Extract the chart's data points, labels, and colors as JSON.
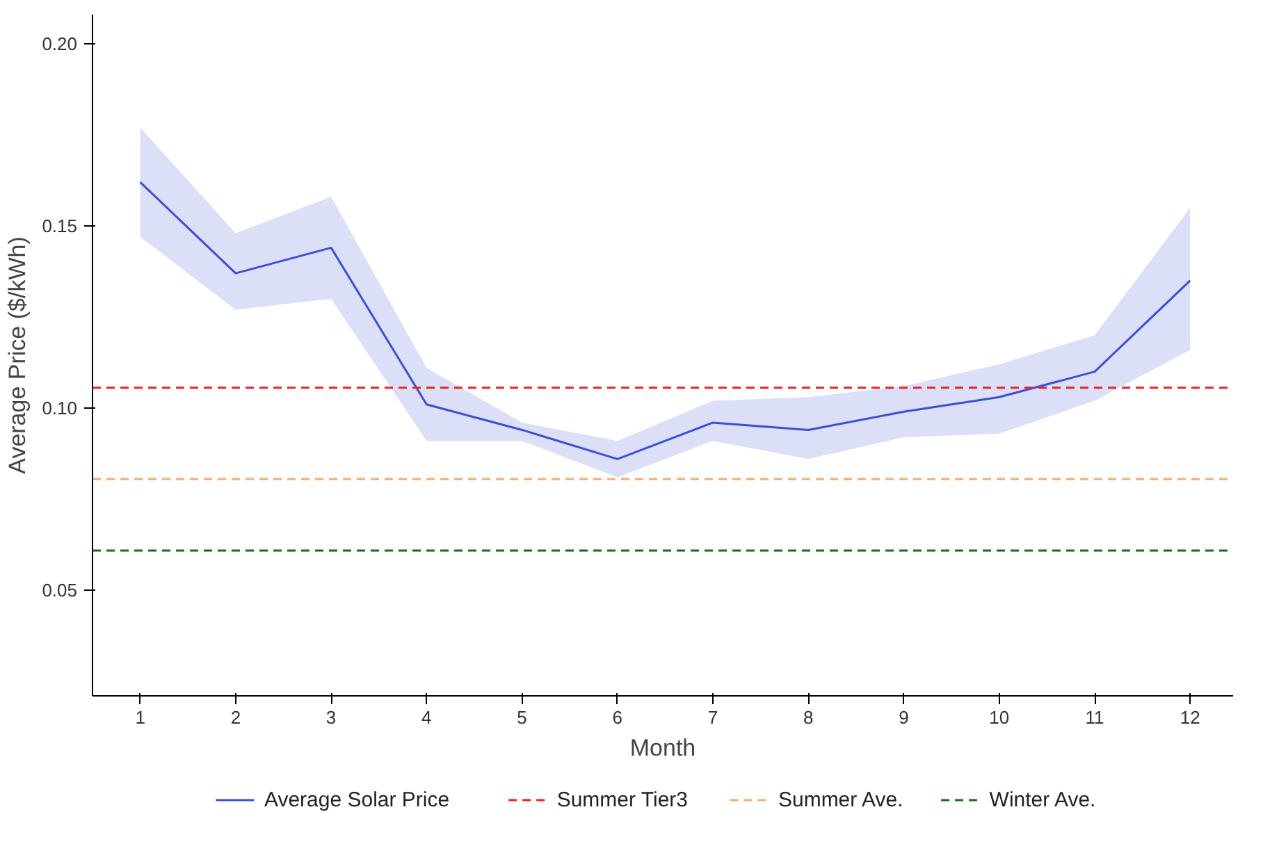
{
  "chart_data": {
    "type": "line",
    "xlabel": "Month",
    "ylabel": "Average Price ($/kWh)",
    "x": [
      1,
      2,
      3,
      4,
      5,
      6,
      7,
      8,
      9,
      10,
      11,
      12
    ],
    "series": [
      {
        "name": "Average Solar Price",
        "color": "#3a4fd9",
        "values": [
          0.162,
          0.137,
          0.144,
          0.101,
          0.094,
          0.086,
          0.096,
          0.094,
          0.099,
          0.103,
          0.11,
          0.135
        ],
        "lower": [
          0.147,
          0.127,
          0.13,
          0.091,
          0.091,
          0.081,
          0.091,
          0.086,
          0.092,
          0.093,
          0.102,
          0.116
        ],
        "upper": [
          0.177,
          0.148,
          0.158,
          0.111,
          0.096,
          0.091,
          0.102,
          0.103,
          0.106,
          0.112,
          0.12,
          0.155
        ]
      }
    ],
    "ref_lines": [
      {
        "axis": "y",
        "value": 0.1056,
        "label": "Summer Tier3",
        "color": "#ee2222",
        "line_style": "dashed"
      },
      {
        "axis": "y",
        "value": 0.0805,
        "label": "Summer Ave.",
        "color": "#ffaa66",
        "line_style": "dashed"
      },
      {
        "axis": "y",
        "value": 0.0609,
        "label": "Winter Ave.",
        "color": "#1a6b1a",
        "line_style": "dashed"
      }
    ],
    "xlim": [
      0.5,
      12.45
    ],
    "ylim": [
      0.021,
      0.208
    ],
    "xticks": [
      1,
      2,
      3,
      4,
      5,
      6,
      7,
      8,
      9,
      10,
      11,
      12
    ],
    "yticks": [
      0.05,
      {
        "value": 0.1,
        "label": "0.10"
      },
      0.15,
      {
        "value": 0.2,
        "label": "0.20"
      }
    ],
    "grid": false,
    "legend": "bottom",
    "line_style": "solid",
    "marker": "none"
  }
}
